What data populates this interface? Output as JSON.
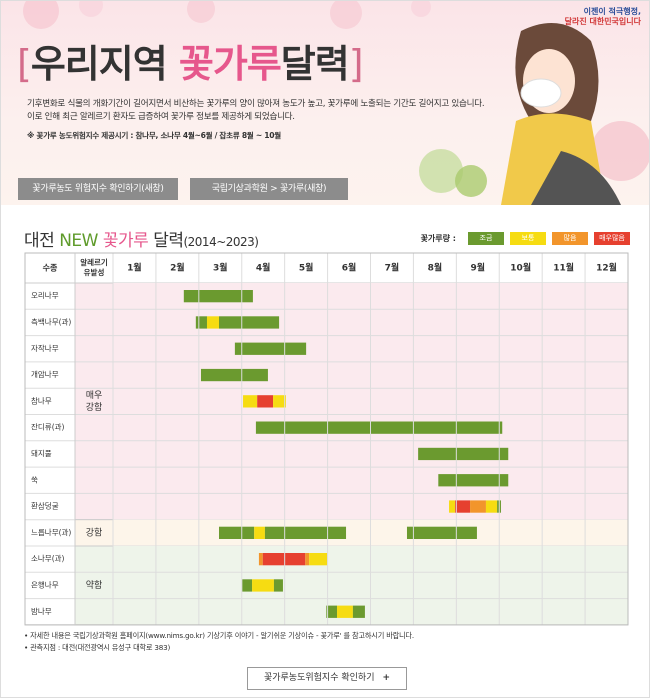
{
  "header": {
    "badge": [
      "이젠이 적극행정,",
      "달라진 대한민국입니다"
    ],
    "title_bracket_open": "[",
    "title_main": "우리지역",
    "title_highlight": "꽃가루",
    "title_end": "달력",
    "title_bracket_close": "]",
    "description": [
      "기후변화로 식물의 개화기간이 길어지면서 비산하는 꽃가루의 양이 많아져 농도가 높고, 꽃가루에 노출되는 기간도 길어지고 있습니다.",
      "이로 인해 최근 알레르기 환자도 급증하여 꽃가루 정보를 제공하게 되었습니다."
    ],
    "note": "※ 꽃가루 농도위험지수 제공시기 : 참나무, 소나무 4월~6월 / 잡초류 8월 ~ 10월"
  },
  "buttons": [
    "꽃가루농도 위험지수 확인하기(새창)",
    "국립기상과학원 > 꽃가루(새창)"
  ],
  "calendar": {
    "title": [
      "대전",
      "NEW",
      "꽃가루",
      "달력",
      "(2014~2023)"
    ],
    "legend_label": "꽃가루량 :",
    "levels": [
      {
        "name": "조금",
        "color": "#6b9a2f"
      },
      {
        "name": "보통",
        "color": "#f6dc12"
      },
      {
        "name": "많음",
        "color": "#f2952b"
      },
      {
        "name": "매우많음",
        "color": "#e6402f"
      }
    ],
    "col_species": "수종",
    "col_allergy": [
      "알레르기",
      "유발성"
    ],
    "months": [
      "1월",
      "2월",
      "3월",
      "4월",
      "5월",
      "6월",
      "7월",
      "8월",
      "9월",
      "10월",
      "11월",
      "12월"
    ],
    "groups": [
      {
        "label": [
          "매우",
          "강함"
        ],
        "bg": "#fbeaee",
        "rows": [
          {
            "name": "오리나무",
            "segments": [
              {
                "level": 0,
                "start": 2.65,
                "end": 4.26
              }
            ]
          },
          {
            "name": "측백나무(과)",
            "segments": [
              {
                "level": 0,
                "start": 2.93,
                "end": 3.19
              },
              {
                "level": 1,
                "start": 3.19,
                "end": 3.47
              },
              {
                "level": 0,
                "start": 3.47,
                "end": 4.87
              }
            ]
          },
          {
            "name": "자작나무",
            "segments": [
              {
                "level": 0,
                "start": 3.84,
                "end": 5.5
              }
            ]
          },
          {
            "name": "개암나무",
            "segments": [
              {
                "level": 0,
                "start": 3.05,
                "end": 4.61
              }
            ]
          },
          {
            "name": "참나무",
            "segments": [
              {
                "level": 1,
                "start": 4.03,
                "end": 4.36
              },
              {
                "level": 3,
                "start": 4.36,
                "end": 4.73
              },
              {
                "level": 1,
                "start": 4.73,
                "end": 5.03
              }
            ]
          },
          {
            "name": "잔디류(과)",
            "segments": [
              {
                "level": 0,
                "start": 4.33,
                "end": 10.07
              }
            ]
          },
          {
            "name": "돼지풀",
            "segments": [
              {
                "level": 0,
                "start": 8.11,
                "end": 10.21
              }
            ]
          },
          {
            "name": "쑥",
            "segments": [
              {
                "level": 0,
                "start": 8.58,
                "end": 10.21
              }
            ]
          },
          {
            "name": "환삼덩굴",
            "segments": [
              {
                "level": 1,
                "start": 8.83,
                "end": 8.97
              },
              {
                "level": 3,
                "start": 8.97,
                "end": 9.32
              },
              {
                "level": 2,
                "start": 9.32,
                "end": 9.69
              },
              {
                "level": 1,
                "start": 9.69,
                "end": 9.95
              },
              {
                "level": 0,
                "start": 9.95,
                "end": 10.04
              }
            ]
          }
        ]
      },
      {
        "label": [
          "강함"
        ],
        "bg": "#fdf5ea",
        "rows": [
          {
            "name": "느릅나무(과)",
            "segments": [
              {
                "level": 0,
                "start": 3.47,
                "end": 4.29
              },
              {
                "level": 1,
                "start": 4.29,
                "end": 4.54
              },
              {
                "level": 0,
                "start": 4.54,
                "end": 6.43
              },
              {
                "level": 0,
                "start": 7.85,
                "end": 9.48
              }
            ]
          }
        ]
      },
      {
        "label": [
          "약함"
        ],
        "bg": "#eef4ea",
        "rows": [
          {
            "name": "소나무(과)",
            "segments": [
              {
                "level": 2,
                "start": 4.4,
                "end": 4.49
              },
              {
                "level": 3,
                "start": 4.49,
                "end": 5.48
              },
              {
                "level": 2,
                "start": 5.48,
                "end": 5.57
              },
              {
                "level": 1,
                "start": 5.57,
                "end": 5.99
              }
            ]
          },
          {
            "name": "은행나무",
            "segments": [
              {
                "level": 0,
                "start": 4.01,
                "end": 4.24
              },
              {
                "level": 1,
                "start": 4.24,
                "end": 4.75
              },
              {
                "level": 0,
                "start": 4.75,
                "end": 4.96
              }
            ]
          },
          {
            "name": "밤나무",
            "segments": [
              {
                "level": 0,
                "start": 5.97,
                "end": 6.22
              },
              {
                "level": 1,
                "start": 6.22,
                "end": 6.59
              },
              {
                "level": 0,
                "start": 6.59,
                "end": 6.87
              }
            ]
          }
        ]
      }
    ]
  },
  "footnotes": [
    "• 자세한 내용은 국립기상과학원 홈페이지(www.nims.go.kr) 기상기후 이야기 - 알기쉬운 기상이슈 - 꽃가루' 를 참고하시기 바랍니다.",
    "• 관측지점 : 대전(대전광역시 유성구 대학로 383)"
  ],
  "bottom_button": {
    "label": "꽃가루농도위험지수 확인하기",
    "icon": "+"
  }
}
